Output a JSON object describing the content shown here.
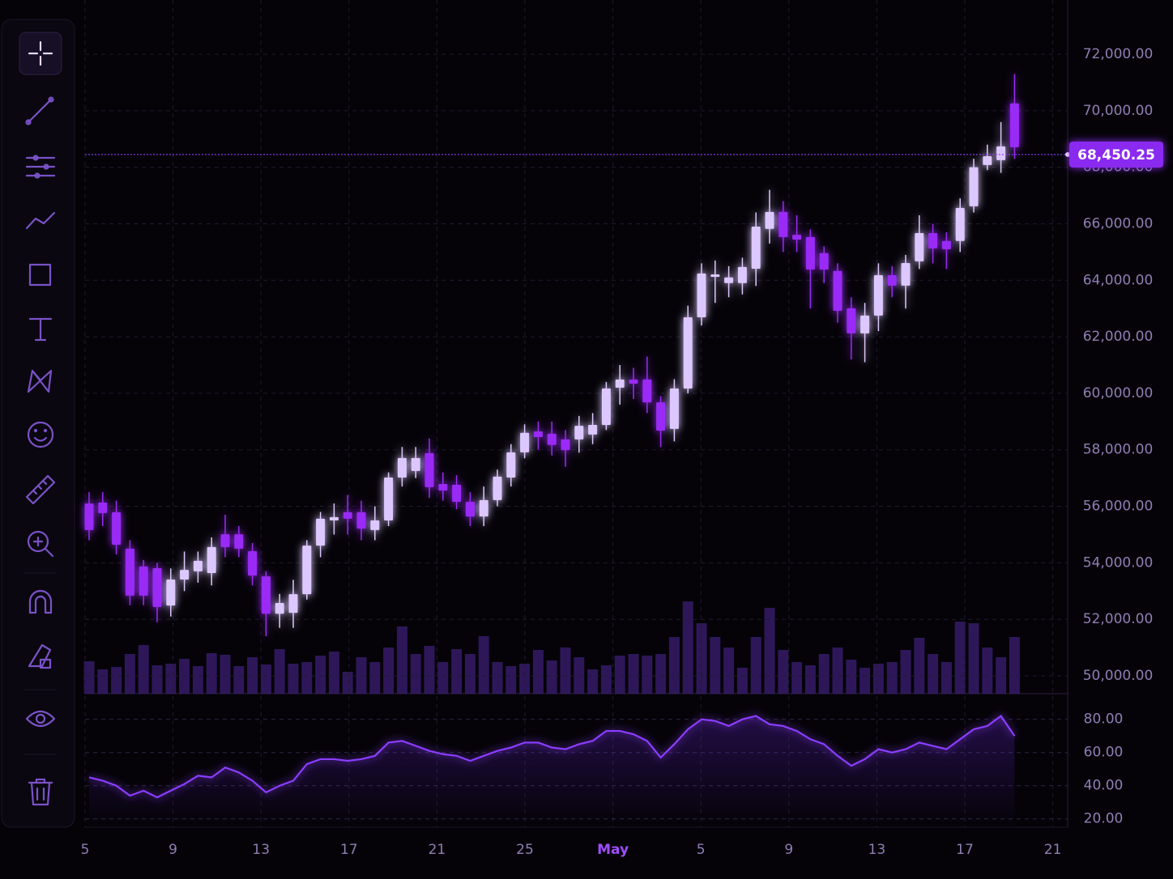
{
  "chart_data": [
    {
      "type": "candlestick",
      "x_labels": [
        "5",
        "9",
        "13",
        "17",
        "21",
        "25",
        "May",
        "5",
        "9",
        "13",
        "17",
        "21"
      ],
      "open": [
        56100,
        56130,
        55790,
        54500,
        53870,
        53810,
        52490,
        53410,
        53700,
        53640,
        55010,
        55010,
        54410,
        53520,
        52200,
        52230,
        52890,
        54610,
        55500,
        55790,
        55790,
        55160,
        55500,
        57020,
        57250,
        57880,
        56790,
        56760,
        56160,
        55640,
        56220,
        57020,
        57910,
        58650,
        58570,
        58370,
        58370,
        58540,
        58880,
        60200,
        60490,
        60490,
        59680,
        58740,
        60170,
        62690,
        64120,
        63900,
        63900,
        64410,
        65820,
        66420,
        65610,
        65530,
        64960,
        64330,
        63010,
        62120,
        62750,
        64180,
        63810,
        64670,
        65670,
        65390,
        65390,
        66620,
        68080,
        68250,
        70260
      ],
      "high": [
        56500,
        56500,
        56200,
        54800,
        54100,
        54000,
        53800,
        54400,
        54400,
        54900,
        55700,
        55300,
        54700,
        53700,
        52900,
        53400,
        54800,
        55800,
        56100,
        56400,
        56200,
        56000,
        57200,
        58100,
        58100,
        58400,
        57200,
        57100,
        56500,
        56700,
        57300,
        58200,
        58900,
        59000,
        59000,
        58700,
        59200,
        59300,
        60400,
        61000,
        60900,
        61300,
        59900,
        60500,
        63100,
        64600,
        64700,
        64500,
        64800,
        66400,
        67200,
        66800,
        66300,
        65800,
        65200,
        64600,
        63400,
        63200,
        64600,
        64500,
        64900,
        66300,
        66000,
        65700,
        66900,
        68300,
        68800,
        69600,
        71300
      ],
      "low": [
        54800,
        55300,
        54300,
        52500,
        52500,
        51900,
        52100,
        53000,
        53300,
        53200,
        54200,
        54200,
        53200,
        51400,
        51700,
        51700,
        52700,
        54200,
        55000,
        55000,
        54800,
        54800,
        55300,
        56700,
        57000,
        56300,
        56200,
        55900,
        55300,
        55300,
        56000,
        56700,
        57700,
        58000,
        57800,
        57400,
        57900,
        58200,
        58700,
        59600,
        59800,
        59300,
        58100,
        58300,
        60000,
        62400,
        63200,
        63400,
        63500,
        63800,
        65300,
        65000,
        65000,
        63000,
        63900,
        62500,
        61200,
        61100,
        62200,
        63400,
        63000,
        64400,
        64600,
        64400,
        65000,
        66400,
        67900,
        67800,
        68300
      ],
      "close": [
        55160,
        55760,
        54640,
        52840,
        52840,
        52440,
        53410,
        53750,
        54070,
        54560,
        54560,
        54500,
        53550,
        52200,
        52580,
        52890,
        54610,
        55560,
        55620,
        55560,
        55210,
        55500,
        57020,
        57710,
        57710,
        56680,
        56560,
        56160,
        55640,
        56220,
        57050,
        57910,
        58600,
        58450,
        58170,
        57990,
        58850,
        58880,
        60170,
        60490,
        60340,
        59680,
        58680,
        60170,
        62690,
        64240,
        64210,
        64100,
        64470,
        65900,
        66420,
        65530,
        65440,
        64380,
        64380,
        62920,
        62120,
        62750,
        64180,
        63810,
        64610,
        65670,
        65130,
        65100,
        66560,
        68000,
        68390,
        68740,
        68710
      ],
      "up_color": "#dcc8ff",
      "down_color": "#9a2cf5",
      "ylim": [
        49370,
        73920
      ],
      "yticks": [
        {
          "value": 50000,
          "label": "50,000.00"
        },
        {
          "value": 52000,
          "label": "52,000.00"
        },
        {
          "value": 54000,
          "label": "54,000.00"
        },
        {
          "value": 56000,
          "label": "56,000.00"
        },
        {
          "value": 58000,
          "label": "58,000.00"
        },
        {
          "value": 60000,
          "label": "60,000.00"
        },
        {
          "value": 62000,
          "label": "62,000.00"
        },
        {
          "value": 64000,
          "label": "64,000.00"
        },
        {
          "value": 66000,
          "label": "66,000.00"
        },
        {
          "value": 68000,
          "label": "68,000.00"
        },
        {
          "value": 70000,
          "label": "70,000.00"
        },
        {
          "value": 72000,
          "label": "72,000.00"
        }
      ],
      "current_price": {
        "value": 68450.25,
        "label": "68,450.25"
      },
      "grid": true
    },
    {
      "type": "bar",
      "color": "#4a2590",
      "values": [
        40,
        30,
        33,
        49,
        60,
        35,
        37,
        43,
        34,
        50,
        48,
        34,
        45,
        36,
        55,
        37,
        39,
        47,
        52,
        27,
        45,
        39,
        57,
        83,
        49,
        59,
        39,
        55,
        49,
        71,
        39,
        34,
        37,
        54,
        41,
        57,
        45,
        30,
        35,
        47,
        49,
        47,
        49,
        70,
        114,
        87,
        70,
        57,
        32,
        70,
        106,
        54,
        39,
        35,
        49,
        57,
        42,
        32,
        37,
        39,
        54,
        69,
        49,
        39,
        89,
        87,
        57,
        45,
        70
      ],
      "ylim": [
        0,
        120
      ]
    },
    {
      "type": "line",
      "color": "#8b3dff",
      "values": [
        45,
        43,
        40,
        34,
        37,
        33,
        37,
        41,
        46,
        45,
        51,
        48,
        43,
        36,
        40,
        43,
        53,
        56,
        56,
        55,
        56,
        58,
        66,
        67,
        64,
        61,
        59,
        58,
        55,
        58,
        61,
        63,
        66,
        66,
        63,
        62,
        65,
        67,
        73,
        73,
        71,
        67,
        57,
        65,
        74,
        80,
        79,
        76,
        80,
        82,
        77,
        76,
        73,
        68,
        65,
        58,
        52,
        56,
        62,
        60,
        62,
        66,
        64,
        62,
        68,
        74,
        76,
        82,
        70
      ],
      "ylim": [
        15,
        94
      ],
      "yticks": [
        {
          "value": 20,
          "label": "20.00"
        },
        {
          "value": 40,
          "label": "40.00"
        },
        {
          "value": 60,
          "label": "60.00"
        },
        {
          "value": 80,
          "label": "80.00"
        }
      ],
      "grid": true
    }
  ]
}
